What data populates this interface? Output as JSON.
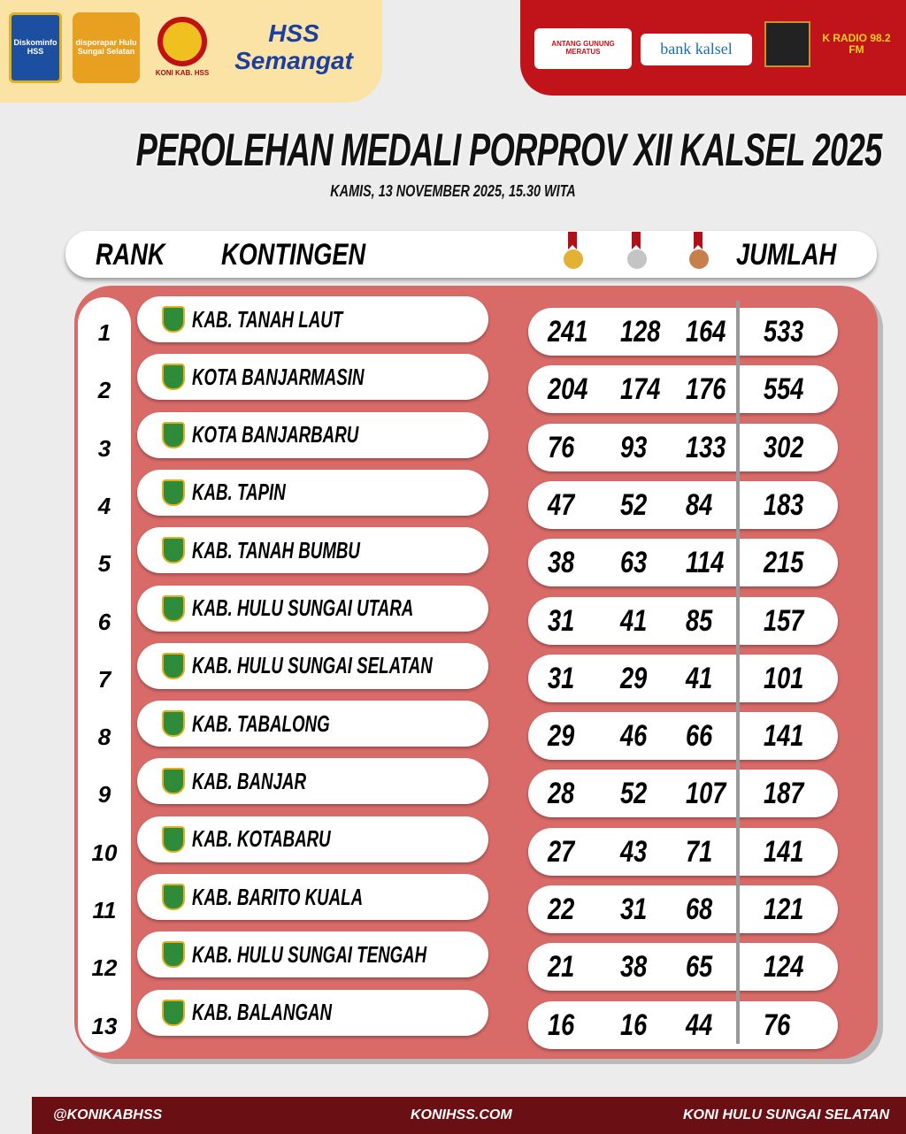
{
  "sponsors_left": [
    "Diskominfo HSS",
    "disporapar Hulu Sungai Selatan",
    "KONI KAB. HSS",
    "HSS Semangat"
  ],
  "sponsors_right": [
    "ANTANG GUNUNG MERATUS",
    "bank kalsel",
    "K RADIO 98.2 FM"
  ],
  "title": "PEROLEHAN MEDALI PORPROV XII KALSEL 2025",
  "subtitle": "KAMIS, 13 NOVEMBER 2025, 15.30 WITA",
  "header": {
    "rank": "RANK",
    "kontingen": "KONTINGEN",
    "jumlah": "JUMLAH",
    "medal_icons": [
      "gold-medal",
      "silver-medal",
      "bronze-medal"
    ]
  },
  "colors": {
    "panel": "#d86a68",
    "accent": "#c0131a",
    "footer": "#6a0f14",
    "gold": "#e3b234",
    "silver": "#c4c4c4",
    "bronze": "#c8804a"
  },
  "rows": [
    {
      "rank": "1",
      "name": "KAB. TANAH LAUT",
      "gold": "241",
      "silver": "128",
      "bronze": "164",
      "total": "533"
    },
    {
      "rank": "2",
      "name": "KOTA BANJARMASIN",
      "gold": "204",
      "silver": "174",
      "bronze": "176",
      "total": "554"
    },
    {
      "rank": "3",
      "name": "KOTA BANJARBARU",
      "gold": "76",
      "silver": "93",
      "bronze": "133",
      "total": "302"
    },
    {
      "rank": "4",
      "name": "KAB. TAPIN",
      "gold": "47",
      "silver": "52",
      "bronze": "84",
      "total": "183"
    },
    {
      "rank": "5",
      "name": "KAB. TANAH BUMBU",
      "gold": "38",
      "silver": "63",
      "bronze": "114",
      "total": "215"
    },
    {
      "rank": "6",
      "name": "KAB. HULU SUNGAI UTARA",
      "gold": "31",
      "silver": "41",
      "bronze": "85",
      "total": "157"
    },
    {
      "rank": "7",
      "name": "KAB. HULU SUNGAI  SELATAN",
      "gold": "31",
      "silver": "29",
      "bronze": "41",
      "total": "101"
    },
    {
      "rank": "8",
      "name": "KAB. TABALONG",
      "gold": "29",
      "silver": "46",
      "bronze": "66",
      "total": "141"
    },
    {
      "rank": "9",
      "name": "KAB. BANJAR",
      "gold": "28",
      "silver": "52",
      "bronze": "107",
      "total": "187"
    },
    {
      "rank": "10",
      "name": "KAB. KOTABARU",
      "gold": "27",
      "silver": "43",
      "bronze": "71",
      "total": "141"
    },
    {
      "rank": "11",
      "name": "KAB. BARITO KUALA",
      "gold": "22",
      "silver": "31",
      "bronze": "68",
      "total": "121"
    },
    {
      "rank": "12",
      "name": "KAB. HULU SUNGAI TENGAH",
      "gold": "21",
      "silver": "38",
      "bronze": "65",
      "total": "124"
    },
    {
      "rank": "13",
      "name": "KAB. BALANGAN",
      "gold": "16",
      "silver": "16",
      "bronze": "44",
      "total": "76"
    }
  ],
  "footer": {
    "instagram": "@KONIKABHSS",
    "website": "KONIHSS.COM",
    "org": "KONI HULU SUNGAI SELATAN"
  }
}
